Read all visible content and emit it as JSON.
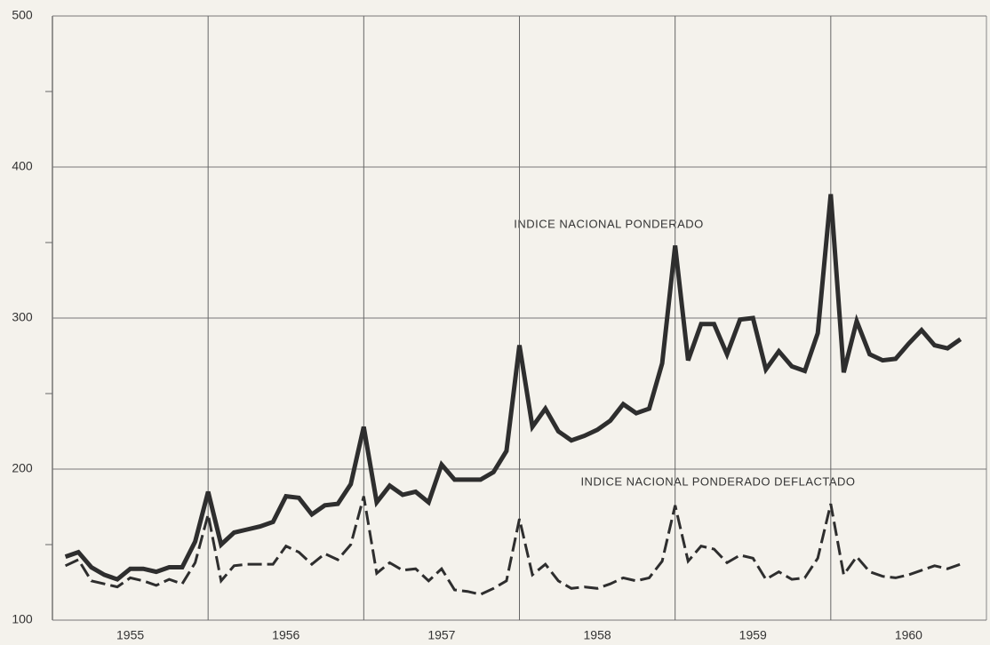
{
  "chart_data": {
    "type": "line",
    "annotations": [
      "INDICE NACIONAL PONDERADO",
      "INDICE NACIONAL PONDERADO DEFLACTADO"
    ],
    "categories": [
      null,
      null,
      null,
      null,
      null,
      "1955",
      null,
      null,
      null,
      null,
      null,
      null,
      null,
      null,
      null,
      null,
      null,
      "1956",
      null,
      null,
      null,
      null,
      null,
      null,
      null,
      null,
      null,
      null,
      null,
      "1957",
      null,
      null,
      null,
      null,
      null,
      null,
      null,
      null,
      null,
      null,
      null,
      "1958",
      null,
      null,
      null,
      null,
      null,
      null,
      null,
      null,
      null,
      null,
      null,
      "1959",
      null,
      null,
      null,
      null,
      null,
      null,
      null,
      null,
      null,
      null,
      null,
      "1960",
      null,
      null,
      null,
      null
    ],
    "series": [
      {
        "name": "INDICE NACIONAL PONDERADO",
        "color": "#2e2e2e",
        "style": "solid",
        "values": [
          142,
          145,
          135,
          130,
          127,
          134,
          134,
          132,
          135,
          135,
          152,
          185,
          150,
          158,
          160,
          162,
          165,
          182,
          181,
          170,
          176,
          177,
          190,
          228,
          178,
          189,
          183,
          185,
          178,
          203,
          193,
          193,
          193,
          198,
          212,
          282,
          228,
          240,
          225,
          219,
          222,
          226,
          232,
          243,
          237,
          240,
          270,
          348,
          272,
          296,
          296,
          276,
          299,
          300,
          266,
          278,
          268,
          265,
          290,
          382,
          264,
          298,
          276,
          272,
          273,
          283,
          292,
          282,
          280,
          286
        ]
      },
      {
        "name": "INDICE NACIONAL PONDERADO DEFLACTADO",
        "color": "#2e2e2e",
        "style": "dashed",
        "values": [
          136,
          140,
          126,
          124,
          122,
          128,
          126,
          123,
          127,
          124,
          138,
          170,
          126,
          136,
          137,
          137,
          137,
          149,
          145,
          137,
          144,
          140,
          150,
          182,
          131,
          138,
          133,
          134,
          126,
          134,
          120,
          119,
          117,
          121,
          126,
          167,
          130,
          137,
          126,
          121,
          122,
          121,
          124,
          128,
          126,
          128,
          139,
          176,
          139,
          149,
          147,
          138,
          143,
          141,
          127,
          132,
          127,
          128,
          141,
          177,
          130,
          142,
          132,
          129,
          128,
          130,
          133,
          136,
          134,
          137
        ]
      }
    ],
    "ylim": [
      100,
      500
    ],
    "yticks": [
      100,
      200,
      300,
      400,
      500
    ],
    "yminor": [
      150,
      250,
      350,
      450
    ],
    "grid": true
  }
}
